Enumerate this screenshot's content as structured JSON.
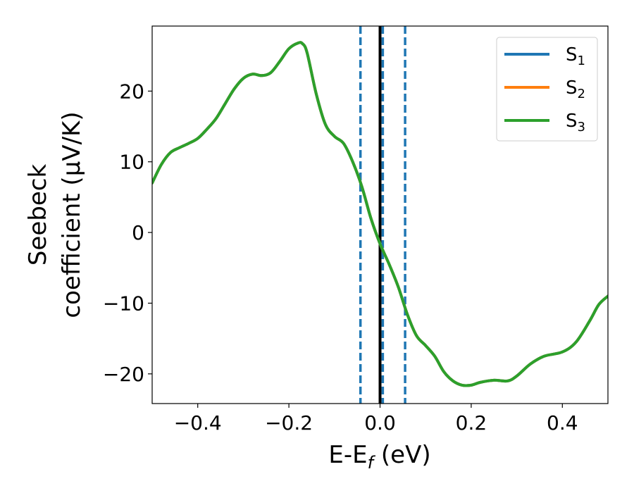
{
  "chart_data": {
    "type": "line",
    "xlabel": "E-E",
    "xlabel_sub": "f",
    "xlabel_unit": " (eV)",
    "ylabel_line1": "Seebeck",
    "ylabel_line2": "coefficient  (μV/K)",
    "xlim": [
      -0.5,
      0.5
    ],
    "ylim": [
      -24.2,
      29.2
    ],
    "xticks": [
      -0.4,
      -0.2,
      0.0,
      0.2,
      0.4
    ],
    "xtick_labels": [
      "−0.4",
      "−0.2",
      "0.0",
      "0.2",
      "0.4"
    ],
    "yticks": [
      -20,
      -10,
      0,
      10,
      20
    ],
    "ytick_labels": [
      "−20",
      "−10",
      "0",
      "10",
      "20"
    ],
    "grid": false,
    "legend_position": "top-right",
    "series": [
      {
        "name": "S",
        "sub": "1",
        "color": "#1f77b4",
        "values": [
          [
            -0.5,
            7.0
          ],
          [
            -0.48,
            9.6
          ],
          [
            -0.46,
            11.3
          ],
          [
            -0.44,
            12.0
          ],
          [
            -0.42,
            12.6
          ],
          [
            -0.4,
            13.3
          ],
          [
            -0.38,
            14.6
          ],
          [
            -0.36,
            16.1
          ],
          [
            -0.34,
            18.2
          ],
          [
            -0.32,
            20.3
          ],
          [
            -0.3,
            21.8
          ],
          [
            -0.28,
            22.4
          ],
          [
            -0.26,
            22.2
          ],
          [
            -0.24,
            22.6
          ],
          [
            -0.22,
            24.2
          ],
          [
            -0.2,
            26.0
          ],
          [
            -0.18,
            26.8
          ],
          [
            -0.17,
            26.7
          ],
          [
            -0.16,
            25.4
          ],
          [
            -0.14,
            19.6
          ],
          [
            -0.12,
            15.3
          ],
          [
            -0.1,
            13.6
          ],
          [
            -0.08,
            12.6
          ],
          [
            -0.06,
            10.0
          ],
          [
            -0.04,
            6.5
          ],
          [
            -0.02,
            2.0
          ],
          [
            0.0,
            -1.6
          ],
          [
            0.02,
            -4.5
          ],
          [
            0.04,
            -7.7
          ],
          [
            0.06,
            -11.6
          ],
          [
            0.08,
            -14.6
          ],
          [
            0.1,
            -16.0
          ],
          [
            0.12,
            -17.5
          ],
          [
            0.14,
            -19.7
          ],
          [
            0.16,
            -21.0
          ],
          [
            0.18,
            -21.6
          ],
          [
            0.2,
            -21.6
          ],
          [
            0.22,
            -21.2
          ],
          [
            0.25,
            -20.9
          ],
          [
            0.28,
            -21.0
          ],
          [
            0.3,
            -20.3
          ],
          [
            0.33,
            -18.6
          ],
          [
            0.36,
            -17.5
          ],
          [
            0.4,
            -16.9
          ],
          [
            0.43,
            -15.5
          ],
          [
            0.46,
            -12.5
          ],
          [
            0.48,
            -10.2
          ],
          [
            0.5,
            -9.0
          ]
        ]
      },
      {
        "name": "S",
        "sub": "2",
        "color": "#ff7f0e",
        "values": [
          [
            -0.5,
            7.0
          ],
          [
            -0.48,
            9.6
          ],
          [
            -0.46,
            11.3
          ],
          [
            -0.44,
            12.0
          ],
          [
            -0.42,
            12.6
          ],
          [
            -0.4,
            13.3
          ],
          [
            -0.38,
            14.6
          ],
          [
            -0.36,
            16.1
          ],
          [
            -0.34,
            18.2
          ],
          [
            -0.32,
            20.3
          ],
          [
            -0.3,
            21.8
          ],
          [
            -0.28,
            22.4
          ],
          [
            -0.26,
            22.2
          ],
          [
            -0.24,
            22.6
          ],
          [
            -0.22,
            24.2
          ],
          [
            -0.2,
            26.0
          ],
          [
            -0.18,
            26.8
          ],
          [
            -0.17,
            26.7
          ],
          [
            -0.16,
            25.4
          ],
          [
            -0.14,
            19.6
          ],
          [
            -0.12,
            15.3
          ],
          [
            -0.1,
            13.6
          ],
          [
            -0.08,
            12.6
          ],
          [
            -0.06,
            10.0
          ],
          [
            -0.04,
            6.5
          ],
          [
            -0.02,
            2.0
          ],
          [
            0.0,
            -1.6
          ],
          [
            0.02,
            -4.5
          ],
          [
            0.04,
            -7.7
          ],
          [
            0.06,
            -11.6
          ],
          [
            0.08,
            -14.6
          ],
          [
            0.1,
            -16.0
          ],
          [
            0.12,
            -17.5
          ],
          [
            0.14,
            -19.7
          ],
          [
            0.16,
            -21.0
          ],
          [
            0.18,
            -21.6
          ],
          [
            0.2,
            -21.6
          ],
          [
            0.22,
            -21.2
          ],
          [
            0.25,
            -20.9
          ],
          [
            0.28,
            -21.0
          ],
          [
            0.3,
            -20.3
          ],
          [
            0.33,
            -18.6
          ],
          [
            0.36,
            -17.5
          ],
          [
            0.4,
            -16.9
          ],
          [
            0.43,
            -15.5
          ],
          [
            0.46,
            -12.5
          ],
          [
            0.48,
            -10.2
          ],
          [
            0.5,
            -9.0
          ]
        ]
      },
      {
        "name": "S",
        "sub": "3",
        "color": "#2ca02c",
        "values": [
          [
            -0.5,
            7.0
          ],
          [
            -0.48,
            9.6
          ],
          [
            -0.46,
            11.3
          ],
          [
            -0.44,
            12.0
          ],
          [
            -0.42,
            12.6
          ],
          [
            -0.4,
            13.3
          ],
          [
            -0.38,
            14.6
          ],
          [
            -0.36,
            16.1
          ],
          [
            -0.34,
            18.2
          ],
          [
            -0.32,
            20.3
          ],
          [
            -0.3,
            21.8
          ],
          [
            -0.28,
            22.4
          ],
          [
            -0.26,
            22.2
          ],
          [
            -0.24,
            22.6
          ],
          [
            -0.22,
            24.2
          ],
          [
            -0.2,
            26.0
          ],
          [
            -0.18,
            26.8
          ],
          [
            -0.17,
            26.7
          ],
          [
            -0.16,
            25.4
          ],
          [
            -0.14,
            19.6
          ],
          [
            -0.12,
            15.3
          ],
          [
            -0.1,
            13.6
          ],
          [
            -0.08,
            12.6
          ],
          [
            -0.06,
            10.0
          ],
          [
            -0.04,
            6.5
          ],
          [
            -0.02,
            2.0
          ],
          [
            0.0,
            -1.6
          ],
          [
            0.02,
            -4.5
          ],
          [
            0.04,
            -7.7
          ],
          [
            0.06,
            -11.6
          ],
          [
            0.08,
            -14.6
          ],
          [
            0.1,
            -16.0
          ],
          [
            0.12,
            -17.5
          ],
          [
            0.14,
            -19.7
          ],
          [
            0.16,
            -21.0
          ],
          [
            0.18,
            -21.6
          ],
          [
            0.2,
            -21.6
          ],
          [
            0.22,
            -21.2
          ],
          [
            0.25,
            -20.9
          ],
          [
            0.28,
            -21.0
          ],
          [
            0.3,
            -20.3
          ],
          [
            0.33,
            -18.6
          ],
          [
            0.36,
            -17.5
          ],
          [
            0.4,
            -16.9
          ],
          [
            0.43,
            -15.5
          ],
          [
            0.46,
            -12.5
          ],
          [
            0.48,
            -10.2
          ],
          [
            0.5,
            -9.0
          ]
        ]
      }
    ],
    "vlines": [
      {
        "x": -0.043,
        "style": "dashed",
        "color": "#1f77b4"
      },
      {
        "x": 0.0,
        "style": "solid",
        "color": "#000000"
      },
      {
        "x": 0.006,
        "style": "dashed",
        "color": "#1f77b4"
      },
      {
        "x": 0.055,
        "style": "dashed",
        "color": "#1f77b4"
      }
    ]
  }
}
